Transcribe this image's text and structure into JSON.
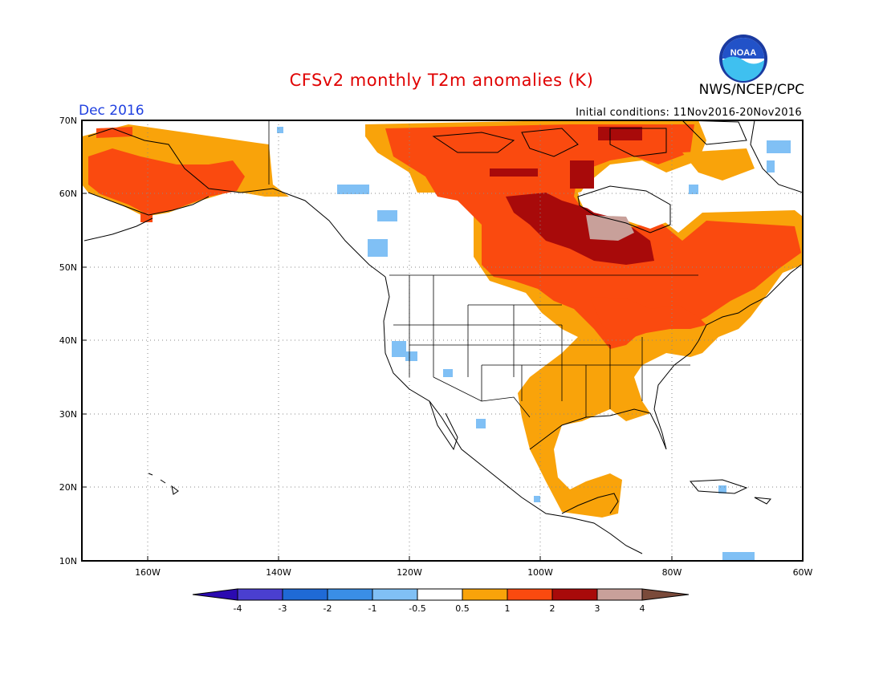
{
  "header": {
    "title": "CFSv2 monthly T2m anomalies (K)",
    "month": "Dec 2016",
    "initial_conditions": "Initial conditions: 11Nov2016-20Nov2016",
    "agency": "NWS/NCEP/CPC",
    "logo_text": "NOAA"
  },
  "map": {
    "lat_labels": [
      "70N",
      "60N",
      "50N",
      "40N",
      "30N",
      "20N",
      "10N"
    ],
    "lon_labels": [
      "160W",
      "140W",
      "120W",
      "100W",
      "80W",
      "60W"
    ],
    "grid": true,
    "regions": [
      {
        "name": "Alaska",
        "anomaly": "1 to 2 K"
      },
      {
        "name": "Hudson Bay / central Canada",
        "anomaly": "2 to 3 K, locally 3 to 4 K"
      },
      {
        "name": "Eastern Canada",
        "anomaly": "1 to 2 K"
      },
      {
        "name": "Eastern United States",
        "anomaly": "0.5 to 1 K"
      },
      {
        "name": "Great Lakes",
        "anomaly": "1 to 2 K"
      },
      {
        "name": "Western United States",
        "anomaly": "-0.5 to 0.5 K"
      },
      {
        "name": "Mexico Gulf coast",
        "anomaly": "0.5 to 1 K"
      }
    ]
  },
  "colorbar": {
    "labels": [
      "-4",
      "-3",
      "-2",
      "-1",
      "-0.5",
      "0.5",
      "1",
      "2",
      "3",
      "4"
    ],
    "colors": [
      "#2b0ab0",
      "#4a3fd0",
      "#1f6ad6",
      "#3a8ee6",
      "#80c0f5",
      "#ffffff",
      "#f9a30a",
      "#fa4a0f",
      "#a80a0a",
      "#c8a09a",
      "#7a4a3a"
    ]
  }
}
